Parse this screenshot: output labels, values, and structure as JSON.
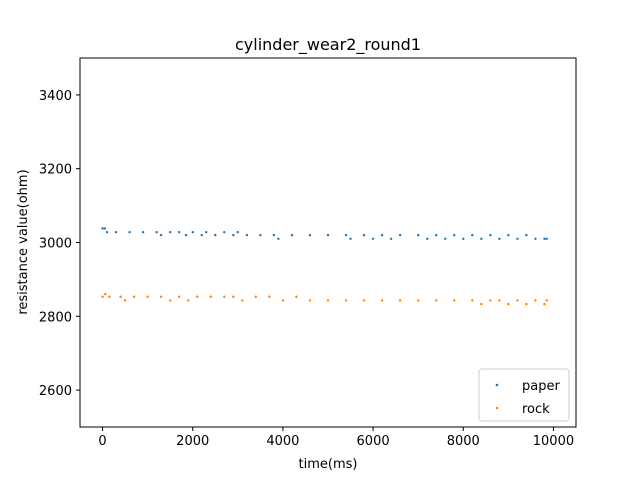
{
  "chart_data": {
    "type": "scatter",
    "title": "cylinder_wear2_round1",
    "xlabel": "time(ms)",
    "ylabel": "resistance value(ohm)",
    "xlim": [
      -500,
      10500
    ],
    "ylim": [
      2500,
      3500
    ],
    "xticks": [
      0,
      2000,
      4000,
      6000,
      8000,
      10000
    ],
    "yticks": [
      2600,
      2800,
      3000,
      3200,
      3400
    ],
    "grid": false,
    "legend_position": "lower-right",
    "series": [
      {
        "name": "paper",
        "color": "#1f77b4",
        "points": [
          [
            0,
            3038
          ],
          [
            50,
            3038
          ],
          [
            100,
            3028
          ],
          [
            300,
            3028
          ],
          [
            600,
            3028
          ],
          [
            900,
            3028
          ],
          [
            1200,
            3028
          ],
          [
            1300,
            3020
          ],
          [
            1500,
            3028
          ],
          [
            1700,
            3028
          ],
          [
            1850,
            3020
          ],
          [
            2000,
            3028
          ],
          [
            2200,
            3020
          ],
          [
            2300,
            3028
          ],
          [
            2500,
            3020
          ],
          [
            2700,
            3028
          ],
          [
            2900,
            3020
          ],
          [
            3000,
            3028
          ],
          [
            3200,
            3020
          ],
          [
            3500,
            3020
          ],
          [
            3800,
            3020
          ],
          [
            3900,
            3010
          ],
          [
            4200,
            3020
          ],
          [
            4600,
            3020
          ],
          [
            5000,
            3020
          ],
          [
            5400,
            3020
          ],
          [
            5500,
            3010
          ],
          [
            5800,
            3020
          ],
          [
            6000,
            3010
          ],
          [
            6200,
            3020
          ],
          [
            6400,
            3010
          ],
          [
            6600,
            3020
          ],
          [
            7000,
            3020
          ],
          [
            7200,
            3010
          ],
          [
            7400,
            3020
          ],
          [
            7600,
            3010
          ],
          [
            7800,
            3020
          ],
          [
            8000,
            3010
          ],
          [
            8200,
            3020
          ],
          [
            8400,
            3010
          ],
          [
            8600,
            3020
          ],
          [
            8800,
            3010
          ],
          [
            9000,
            3020
          ],
          [
            9200,
            3010
          ],
          [
            9400,
            3020
          ],
          [
            9600,
            3010
          ],
          [
            9800,
            3010
          ],
          [
            9850,
            3010
          ]
        ]
      },
      {
        "name": "rock",
        "color": "#ff7f0e",
        "points": [
          [
            0,
            2853
          ],
          [
            60,
            2860
          ],
          [
            150,
            2853
          ],
          [
            400,
            2853
          ],
          [
            500,
            2843
          ],
          [
            700,
            2853
          ],
          [
            1000,
            2853
          ],
          [
            1300,
            2853
          ],
          [
            1500,
            2843
          ],
          [
            1700,
            2853
          ],
          [
            1900,
            2843
          ],
          [
            2100,
            2853
          ],
          [
            2400,
            2853
          ],
          [
            2700,
            2853
          ],
          [
            2900,
            2853
          ],
          [
            3100,
            2843
          ],
          [
            3400,
            2853
          ],
          [
            3700,
            2853
          ],
          [
            4000,
            2843
          ],
          [
            4300,
            2853
          ],
          [
            4600,
            2843
          ],
          [
            5000,
            2843
          ],
          [
            5400,
            2843
          ],
          [
            5800,
            2843
          ],
          [
            6200,
            2843
          ],
          [
            6600,
            2843
          ],
          [
            7000,
            2843
          ],
          [
            7400,
            2843
          ],
          [
            7800,
            2843
          ],
          [
            8200,
            2843
          ],
          [
            8400,
            2833
          ],
          [
            8600,
            2843
          ],
          [
            8800,
            2843
          ],
          [
            9000,
            2833
          ],
          [
            9200,
            2843
          ],
          [
            9400,
            2833
          ],
          [
            9600,
            2843
          ],
          [
            9800,
            2833
          ],
          [
            9850,
            2843
          ]
        ]
      }
    ]
  }
}
